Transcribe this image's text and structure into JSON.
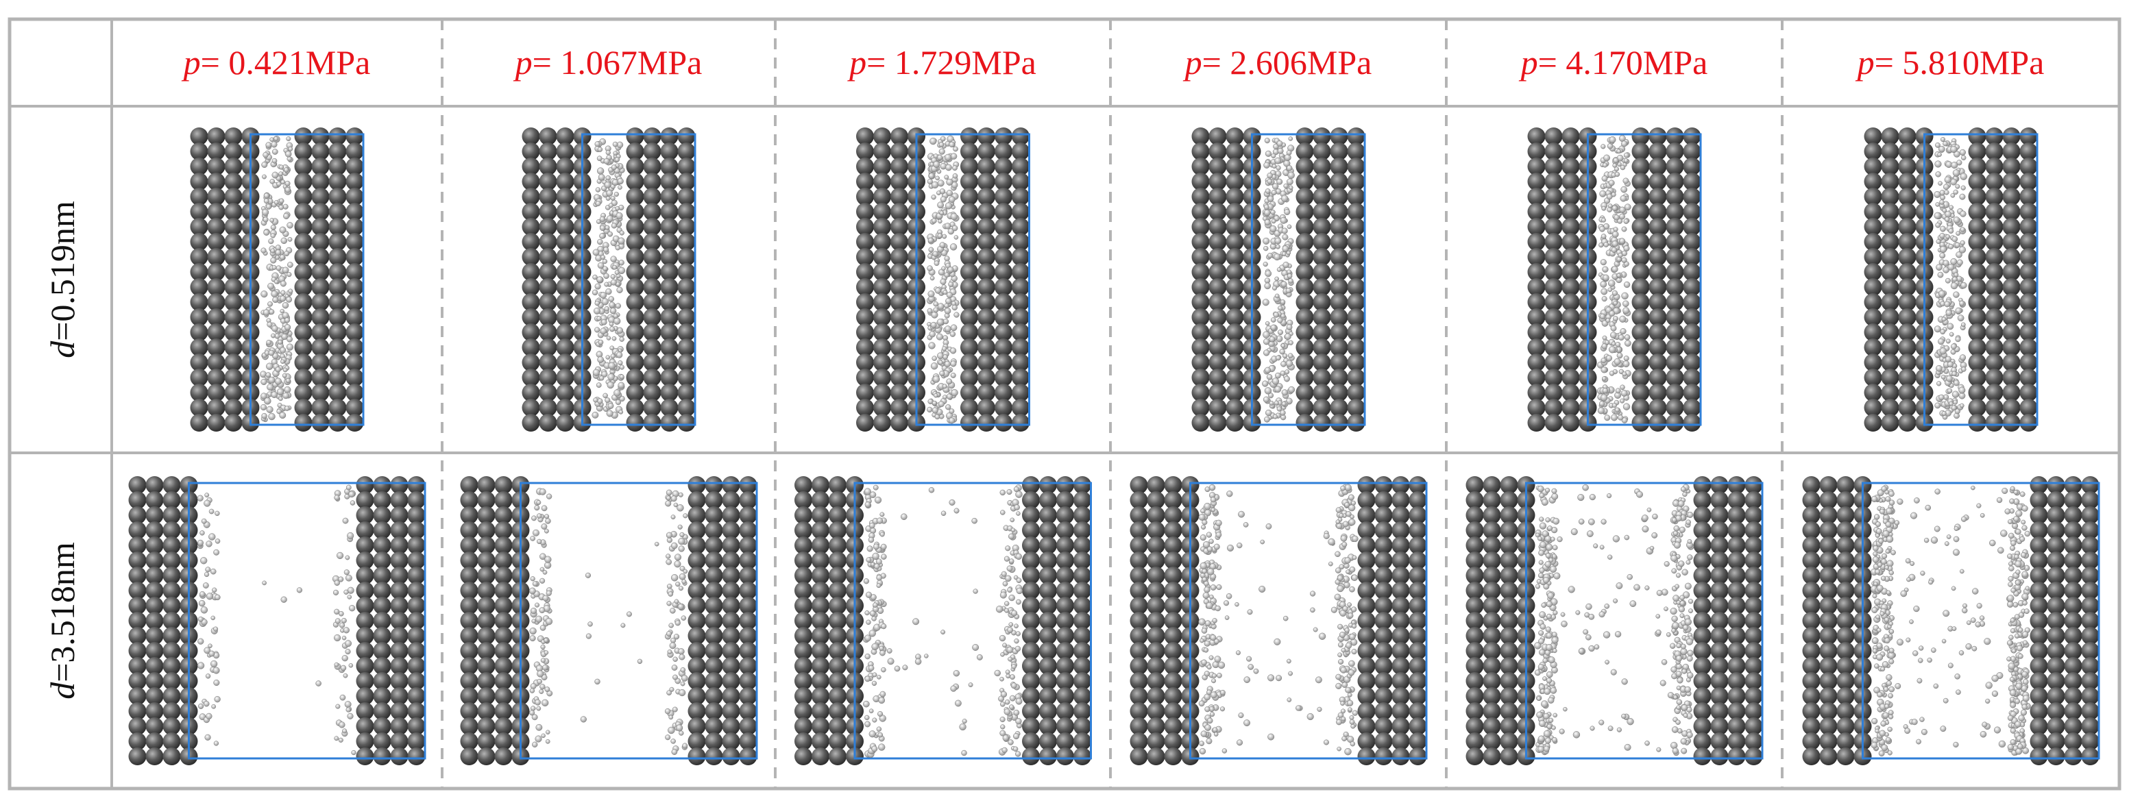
{
  "columns": [
    {
      "symbol": "p",
      "text": "= 0.421MPa"
    },
    {
      "symbol": "p",
      "text": "= 1.067MPa"
    },
    {
      "symbol": "p",
      "text": "= 1.729MPa"
    },
    {
      "symbol": "p",
      "text": "= 2.606MPa"
    },
    {
      "symbol": "p",
      "text": "= 4.170MPa"
    },
    {
      "symbol": "p",
      "text": "= 5.810MPa"
    }
  ],
  "rows": [
    {
      "symbol": "d",
      "text": "=0.519nm"
    },
    {
      "symbol": "d",
      "text": "=3.518nm"
    }
  ]
}
